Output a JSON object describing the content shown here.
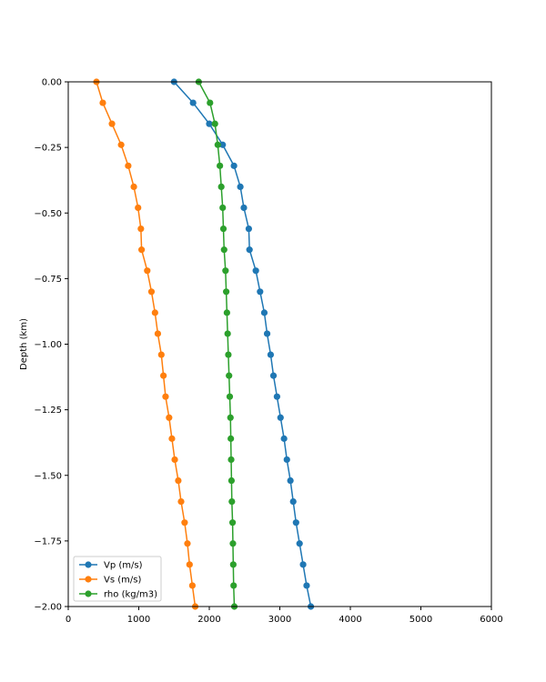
{
  "chart_data": {
    "type": "line",
    "title": "",
    "xlabel": "",
    "ylabel": "Depth (km)",
    "xlim": [
      0,
      6000
    ],
    "ylim": [
      -2.0,
      0.0
    ],
    "xticks": [
      0,
      1000,
      2000,
      3000,
      4000,
      5000,
      6000
    ],
    "yticks": [
      0.0,
      -0.25,
      -0.5,
      -0.75,
      -1.0,
      -1.25,
      -1.5,
      -1.75,
      -2.0
    ],
    "xtick_labels": [
      "0",
      "1000",
      "2000",
      "3000",
      "4000",
      "5000",
      "6000"
    ],
    "ytick_labels": [
      "0.00",
      "−0.25",
      "−0.50",
      "−0.75",
      "−1.00",
      "−1.25",
      "−1.50",
      "−1.75",
      "−2.00"
    ],
    "grid": false,
    "legend_position": "lower-left",
    "depth": [
      0.0,
      -0.08,
      -0.16,
      -0.24,
      -0.32,
      -0.4,
      -0.48,
      -0.56,
      -0.64,
      -0.72,
      -0.8,
      -0.88,
      -0.96,
      -1.04,
      -1.12,
      -1.2,
      -1.28,
      -1.36,
      -1.44,
      -1.52,
      -1.6,
      -1.68,
      -1.76,
      -1.84,
      -1.92,
      -2.0
    ],
    "series": [
      {
        "name": "Vp (m/s)",
        "color": "#1f77b4",
        "values": [
          1500,
          1770,
          2000,
          2190,
          2350,
          2440,
          2490,
          2560,
          2570,
          2660,
          2720,
          2780,
          2820,
          2870,
          2910,
          2960,
          3010,
          3060,
          3100,
          3150,
          3190,
          3230,
          3280,
          3330,
          3380,
          3440
        ]
      },
      {
        "name": "Vs (m/s)",
        "color": "#ff7f0e",
        "values": [
          400,
          490,
          620,
          750,
          850,
          930,
          990,
          1030,
          1040,
          1120,
          1180,
          1230,
          1270,
          1320,
          1350,
          1380,
          1430,
          1470,
          1510,
          1560,
          1600,
          1650,
          1690,
          1720,
          1760,
          1800
        ]
      },
      {
        "name": "rho (kg/m3)",
        "color": "#2ca02c",
        "values": [
          1850,
          2010,
          2080,
          2120,
          2150,
          2170,
          2190,
          2200,
          2210,
          2230,
          2240,
          2250,
          2260,
          2270,
          2280,
          2290,
          2300,
          2305,
          2310,
          2315,
          2320,
          2330,
          2335,
          2340,
          2345,
          2355
        ]
      }
    ]
  }
}
